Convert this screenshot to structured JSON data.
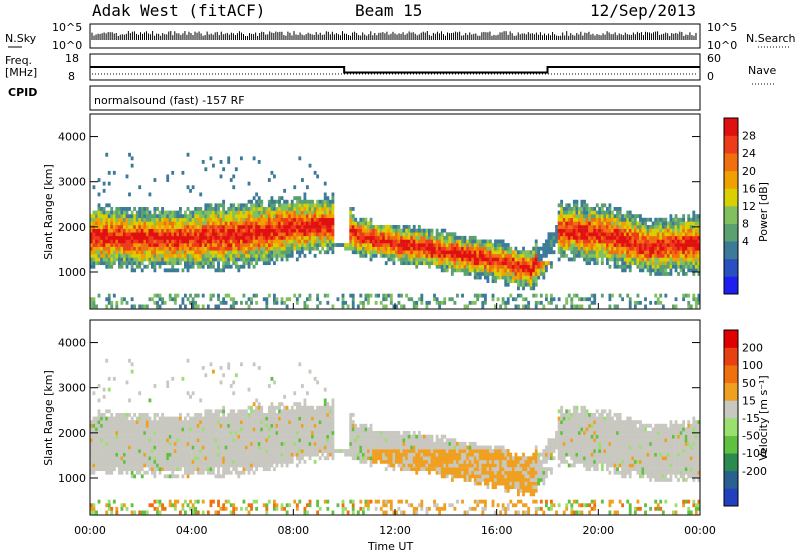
{
  "header": {
    "station": "Adak West (fitACF)",
    "beam": "Beam 15",
    "date": "12/Sep/2013"
  },
  "strip": {
    "nsky_label": "N.Sky",
    "nsky_ticks": [
      "10^5",
      "10^0"
    ],
    "nsearch_label": "N.Search",
    "nsearch_ticks": [
      "10^5",
      "10^0"
    ],
    "freq_label": "Freq.",
    "freq_unit": "[MHz]",
    "freq_ticks": [
      "18",
      "8"
    ],
    "nave_label": "Nave",
    "nave_ticks": [
      "60",
      "0"
    ],
    "cpid_label": "CPID",
    "cpid_value": "normalsound (fast) -157 RF"
  },
  "panels": {
    "ylabel": "Slant Range [km]",
    "xlabel": "Time UT"
  },
  "colorbars": {
    "power": {
      "label": "Power [dB]",
      "ticks": [
        "28",
        "24",
        "20",
        "16",
        "12",
        "8",
        "4"
      ],
      "colors": [
        "#1e1ef0",
        "#2a50c0",
        "#3c7a9a",
        "#5aa070",
        "#80c060",
        "#d8d000",
        "#f0a000",
        "#f07010",
        "#ee3b1a",
        "#e01010"
      ]
    },
    "velocity": {
      "label": "Velocity [m s⁻¹]",
      "ticks": [
        "200",
        "100",
        "50",
        "15",
        "-15",
        "-50",
        "-100",
        "-200"
      ],
      "colors": [
        "#2040c0",
        "#2a6090",
        "#2a8a50",
        "#60c040",
        "#9ae070",
        "#c8c8c0",
        "#f0a020",
        "#f07010",
        "#e84010",
        "#e00000"
      ]
    }
  },
  "chart_data": {
    "type": "heatmap",
    "x_ticks": [
      "00:00",
      "04:00",
      "08:00",
      "12:00",
      "16:00",
      "20:00",
      "00:00"
    ],
    "x_range_hours": [
      0,
      24
    ],
    "y_ticks": [
      "4000",
      "3000",
      "2000",
      "1000"
    ],
    "y_range_km": [
      180,
      4500
    ],
    "freq_mhz": [
      {
        "t0": 0,
        "t1": 10,
        "value": 13
      },
      {
        "t0": 10,
        "t1": 18,
        "value": 10.5
      },
      {
        "t0": 18,
        "t1": 24,
        "value": 13
      }
    ],
    "echo_band_km": [
      {
        "t": 0,
        "center": 1750,
        "width": 450
      },
      {
        "t": 2,
        "center": 1700,
        "width": 450
      },
      {
        "t": 4,
        "center": 1700,
        "width": 450
      },
      {
        "t": 6,
        "center": 1800,
        "width": 500
      },
      {
        "t": 8,
        "center": 1950,
        "width": 450
      },
      {
        "t": 9.8,
        "center": 2050,
        "width": 400
      },
      {
        "t": 10.5,
        "center": 1750,
        "width": 300
      },
      {
        "t": 12,
        "center": 1600,
        "width": 300
      },
      {
        "t": 14,
        "center": 1400,
        "width": 300
      },
      {
        "t": 16,
        "center": 1200,
        "width": 300
      },
      {
        "t": 17.3,
        "center": 1000,
        "width": 300
      },
      {
        "t": 18.5,
        "center": 1900,
        "width": 400
      },
      {
        "t": 20,
        "center": 1800,
        "width": 450
      },
      {
        "t": 22,
        "center": 1500,
        "width": 400
      },
      {
        "t": 24,
        "center": 1600,
        "width": 450
      }
    ]
  }
}
